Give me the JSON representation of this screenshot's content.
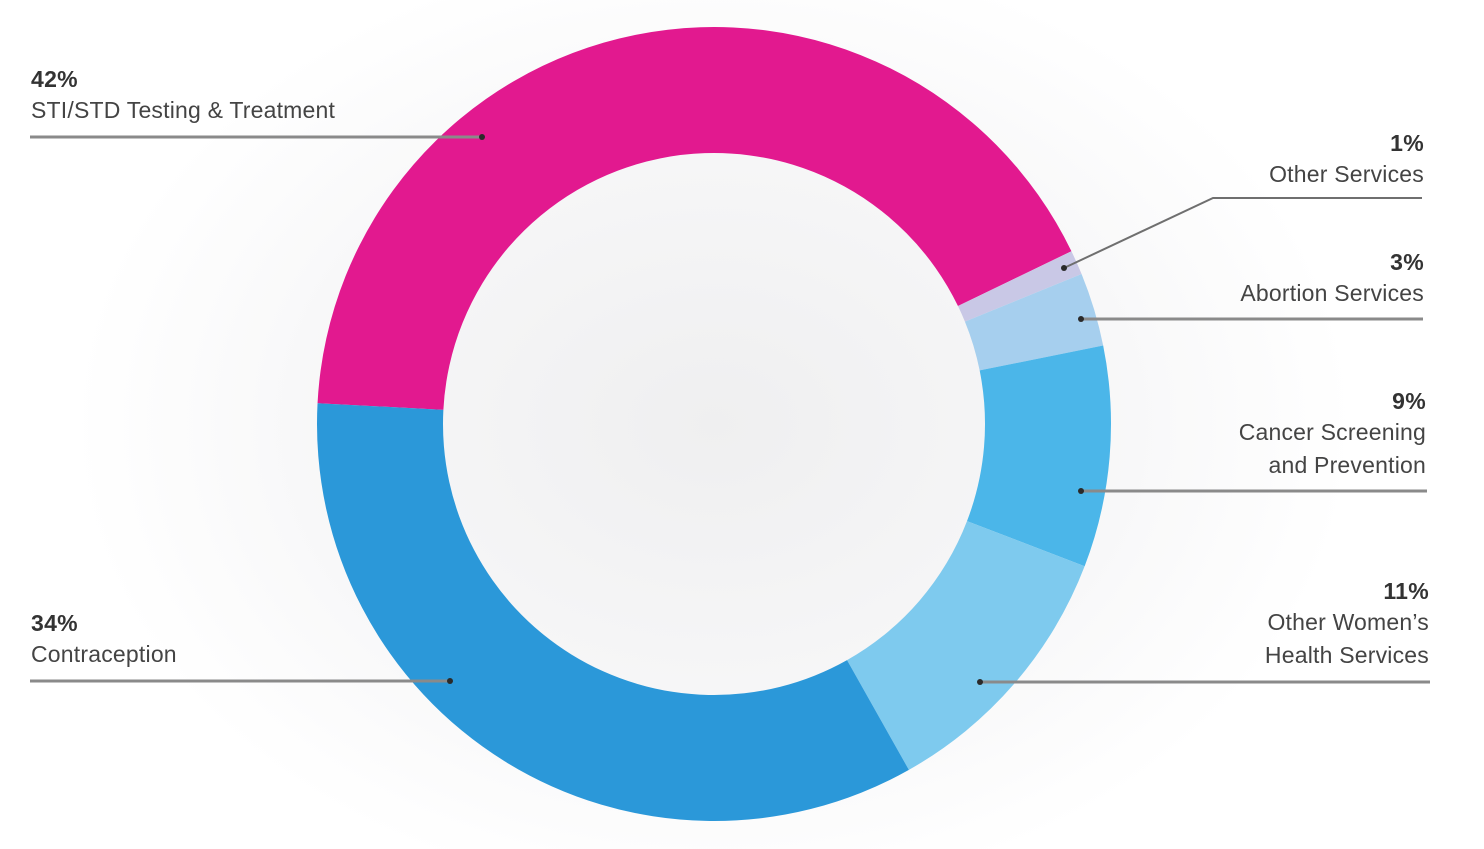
{
  "chart_data": {
    "type": "pie",
    "subtype": "donut",
    "title": "",
    "center": [
      714,
      424
    ],
    "outer_radius": 397,
    "inner_radius": 271,
    "start_angle_deg": 273,
    "direction": "clockwise",
    "slices": [
      {
        "label": "STI/STD Testing & Treatment",
        "value": 42,
        "pct_label": "42%",
        "color": "#e2198f"
      },
      {
        "label": "Other Services",
        "value": 1,
        "pct_label": "1%",
        "color": "#c9c8e6"
      },
      {
        "label": "Abortion Services",
        "value": 3,
        "pct_label": "3%",
        "color": "#a6cfee"
      },
      {
        "label": "Cancer Screening and Prevention",
        "value": 9,
        "pct_label": "9%",
        "color": "#4bb6e9"
      },
      {
        "label": "Other Women's Health Services",
        "value": 11,
        "pct_label": "11%",
        "color": "#7ecaee"
      },
      {
        "label": "Contraception",
        "value": 34,
        "pct_label": "34%",
        "color": "#2b98d9"
      }
    ],
    "legend_position": "callout-labels"
  },
  "labels": {
    "sti": {
      "pct": "42%",
      "line1": "STI/STD Testing & Treatment",
      "line2": ""
    },
    "other": {
      "pct": "1%",
      "line1": "Other Services",
      "line2": ""
    },
    "abortion": {
      "pct": "3%",
      "line1": "Abortion Services",
      "line2": ""
    },
    "cancer": {
      "pct": "9%",
      "line1": "Cancer Screening",
      "line2": "and Prevention"
    },
    "womens": {
      "pct": "11%",
      "line1": "Other Women’s",
      "line2": "Health Services"
    },
    "contraception": {
      "pct": "34%",
      "line1": "Contraception",
      "line2": ""
    }
  },
  "leader_color": "#8a8a8a",
  "dot_color": "#2a2a2a"
}
